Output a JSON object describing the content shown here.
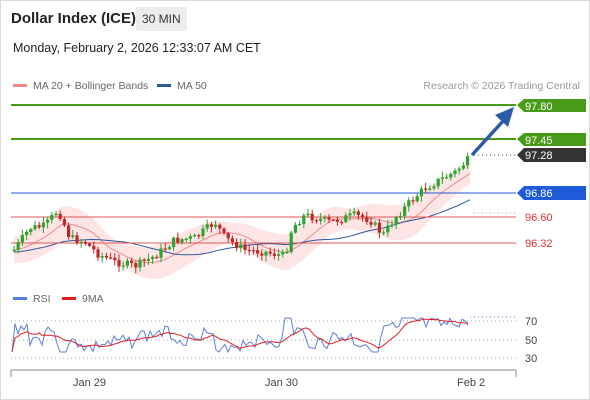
{
  "header": {
    "title": "Dollar Index (ICE)",
    "timeframe": "30 MIN",
    "datetime": "Monday, February 2, 2026 12:33:07 AM CET"
  },
  "legend": {
    "bb": {
      "label": "MA 20 + Bollinger Bands",
      "color": "#f08a8a"
    },
    "ma50": {
      "label": "MA 50",
      "color": "#2d5a9c"
    },
    "credit": "Research © 2026 Trading Central"
  },
  "levels": [
    {
      "value": "97.80",
      "kind": "target",
      "color": "#4a9a1a"
    },
    {
      "value": "97.45",
      "kind": "resistance",
      "color": "#4a9a1a"
    },
    {
      "value": "97.28",
      "kind": "last",
      "color": "#333333"
    },
    {
      "value": "96.86",
      "kind": "pivot",
      "color": "#1f5bd8"
    },
    {
      "value": "96.60",
      "kind": "support",
      "color": "#e05a5a"
    },
    {
      "value": "96.32",
      "kind": "support",
      "color": "#e05a5a"
    }
  ],
  "rsi": {
    "legend_rsi": {
      "label": "RSI",
      "color": "#5a7fd6"
    },
    "legend_ma": {
      "label": "9MA",
      "color": "#e02020"
    },
    "levels": [
      "70",
      "50",
      "30"
    ]
  },
  "xaxis": {
    "labels": [
      "Jan 29",
      "Jan 30",
      "Feb 2"
    ]
  },
  "colors": {
    "up": "#2ea32e",
    "down": "#c02828",
    "band": "#fde2e2"
  }
}
